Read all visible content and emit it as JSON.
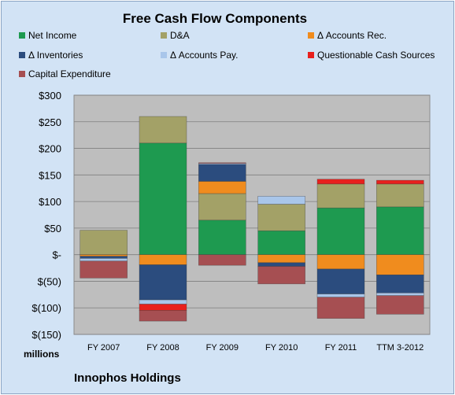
{
  "chart_data": {
    "type": "stacked-bar",
    "title": "Free Cash Flow Components",
    "categories": [
      "FY 2007",
      "FY 2008",
      "FY 2009",
      "FY 2010",
      "FY 2011",
      "TTM 3-2012"
    ],
    "ylim": [
      -150,
      300
    ],
    "yticks": [
      300,
      250,
      200,
      150,
      100,
      50,
      0,
      -50,
      -100,
      -150
    ],
    "ytick_labels": [
      "$300",
      "$250",
      "$200",
      "$150",
      "$100",
      "$50",
      "$-",
      "$(50)",
      "$(100)",
      "$(150)"
    ],
    "ylabel": "millions",
    "grid": true,
    "legend_position": "top",
    "series": [
      {
        "name": "Net Income",
        "color": "#1e9a50",
        "values": [
          0,
          210,
          65,
          45,
          88,
          90
        ]
      },
      {
        "name": "D&A",
        "color": "#a3a167",
        "values": [
          46,
          50,
          50,
          50,
          45,
          43
        ]
      },
      {
        "name": "Δ Accounts Rec.",
        "color": "#f08c1e",
        "values": [
          -3,
          -19,
          23,
          -15,
          -27,
          -38
        ]
      },
      {
        "name": "Δ Inventories",
        "color": "#2b4c7e",
        "values": [
          -4,
          -66,
          32,
          -7,
          -47,
          -34
        ]
      },
      {
        "name": "Δ Accounts Pay.",
        "color": "#a9c6ea",
        "values": [
          -5,
          -8,
          2,
          15,
          -6,
          -5
        ]
      },
      {
        "name": "Questionable Cash Sources",
        "color": "#e8201d",
        "values": [
          0,
          -12,
          1,
          0,
          9,
          7
        ]
      },
      {
        "name": "Capital Expenditure",
        "color": "#a64f52",
        "values": [
          -32,
          -20,
          -20,
          -33,
          -40,
          -35
        ]
      }
    ]
  },
  "footer": {
    "company": "Innophos Holdings"
  }
}
